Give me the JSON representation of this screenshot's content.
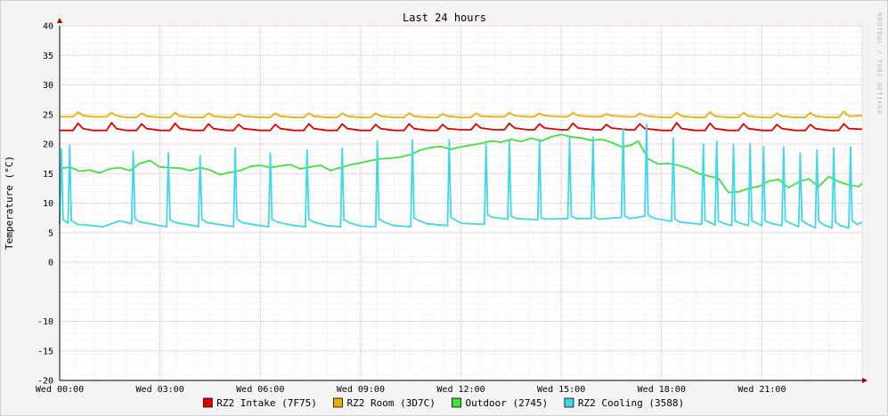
{
  "chart_data": {
    "type": "line",
    "title": "Last 24 hours",
    "ylabel": "Temperature (°C)",
    "watermark": "RRDTOOL / TOBI OETIKER",
    "ylim": [
      -20,
      40
    ],
    "y_ticks": [
      "40",
      "35",
      "30",
      "25",
      "20",
      "15",
      "10",
      "5",
      "0",
      "-10",
      "-15",
      "-20"
    ],
    "y_tick_values": [
      40,
      35,
      30,
      25,
      20,
      15,
      10,
      5,
      0,
      -10,
      -15,
      -20
    ],
    "xlim": [
      0,
      24
    ],
    "x_ticks": [
      "Wed 00:00",
      "Wed 03:00",
      "Wed 06:00",
      "Wed 09:00",
      "Wed 12:00",
      "Wed 15:00",
      "Wed 18:00",
      "Wed 21:00"
    ],
    "x_tick_values": [
      0,
      3,
      6,
      9,
      12,
      15,
      18,
      21
    ],
    "grid": true,
    "legend_position": "bottom",
    "series": [
      {
        "name": "RZ2 Intake (7F75)",
        "color": "#e00000",
        "x": [
          0,
          0.4,
          0.55,
          0.7,
          1,
          1.4,
          1.55,
          1.7,
          2,
          2.3,
          2.45,
          2.6,
          3,
          3.3,
          3.45,
          3.6,
          4,
          4.3,
          4.45,
          4.6,
          5,
          5.2,
          5.35,
          5.5,
          6,
          6.3,
          6.45,
          6.6,
          7,
          7.3,
          7.45,
          7.6,
          8,
          8.3,
          8.45,
          8.6,
          9,
          9.3,
          9.45,
          9.6,
          10,
          10.3,
          10.45,
          10.6,
          11,
          11.3,
          11.45,
          11.6,
          12,
          12.3,
          12.45,
          12.6,
          13,
          13.3,
          13.45,
          13.6,
          14,
          14.2,
          14.35,
          14.5,
          15,
          15.2,
          15.35,
          15.5,
          16,
          16.2,
          16.35,
          16.5,
          17,
          17.2,
          17.35,
          17.5,
          18,
          18.3,
          18.45,
          18.6,
          19,
          19.3,
          19.45,
          19.6,
          20,
          20.3,
          20.45,
          20.6,
          21,
          21.3,
          21.45,
          21.6,
          22,
          22.3,
          22.45,
          22.6,
          23,
          23.3,
          23.45,
          23.6,
          24
        ],
        "y": [
          22.3,
          22.3,
          23.5,
          22.6,
          22.3,
          22.3,
          23.6,
          22.6,
          22.3,
          22.3,
          23.4,
          22.6,
          22.3,
          22.3,
          23.5,
          22.6,
          22.3,
          22.3,
          23.4,
          22.6,
          22.3,
          22.3,
          23.3,
          22.6,
          22.3,
          22.3,
          23.3,
          22.6,
          22.3,
          22.3,
          23.4,
          22.6,
          22.3,
          22.3,
          23.4,
          22.6,
          22.3,
          22.3,
          23.3,
          22.6,
          22.3,
          22.3,
          23.4,
          22.6,
          22.3,
          22.3,
          23.3,
          22.6,
          22.4,
          22.4,
          23.4,
          22.7,
          22.4,
          22.4,
          23.5,
          22.7,
          22.4,
          22.4,
          23.4,
          22.7,
          22.4,
          22.4,
          23.5,
          22.7,
          22.4,
          22.4,
          23.3,
          22.7,
          22.4,
          22.4,
          23.4,
          22.6,
          22.3,
          22.3,
          23.6,
          22.6,
          22.3,
          22.3,
          23.5,
          22.6,
          22.3,
          22.3,
          23.4,
          22.6,
          22.3,
          22.3,
          23.3,
          22.6,
          22.3,
          22.3,
          23.3,
          22.6,
          22.3,
          22.3,
          23.4,
          22.6,
          22.5
        ]
      },
      {
        "name": "RZ2 Room (3D7C)",
        "color": "#e8b000",
        "x": [
          0,
          0.4,
          0.55,
          0.7,
          1,
          1.4,
          1.55,
          1.7,
          2,
          2.3,
          2.45,
          2.6,
          3,
          3.3,
          3.45,
          3.6,
          4,
          4.3,
          4.45,
          4.6,
          5,
          5.2,
          5.35,
          5.5,
          6,
          6.3,
          6.45,
          6.6,
          7,
          7.3,
          7.45,
          7.6,
          8,
          8.3,
          8.45,
          8.6,
          9,
          9.3,
          9.45,
          9.6,
          10,
          10.3,
          10.45,
          10.6,
          11,
          11.3,
          11.45,
          11.6,
          12,
          12.3,
          12.45,
          12.6,
          13,
          13.3,
          13.45,
          13.6,
          14,
          14.2,
          14.35,
          14.5,
          15,
          15.2,
          15.35,
          15.5,
          16,
          16.2,
          16.35,
          16.5,
          17,
          17.2,
          17.35,
          17.5,
          18,
          18.3,
          18.45,
          18.6,
          19,
          19.3,
          19.45,
          19.6,
          20,
          20.3,
          20.45,
          20.6,
          21,
          21.3,
          21.45,
          21.6,
          22,
          22.3,
          22.45,
          22.6,
          23,
          23.3,
          23.45,
          23.6,
          24
        ],
        "y": [
          24.6,
          24.6,
          25.4,
          24.8,
          24.6,
          24.6,
          25.3,
          24.8,
          24.5,
          24.5,
          25.2,
          24.7,
          24.5,
          24.5,
          25.3,
          24.7,
          24.5,
          24.5,
          25.2,
          24.7,
          24.5,
          24.5,
          25.1,
          24.7,
          24.5,
          24.5,
          25.2,
          24.7,
          24.5,
          24.5,
          25.2,
          24.7,
          24.5,
          24.5,
          25.2,
          24.7,
          24.5,
          24.5,
          25.2,
          24.7,
          24.5,
          24.5,
          25.2,
          24.7,
          24.5,
          24.5,
          25.1,
          24.7,
          24.5,
          24.5,
          25.2,
          24.7,
          24.6,
          24.6,
          25.3,
          24.8,
          24.6,
          24.6,
          25.2,
          24.8,
          24.6,
          24.6,
          25.3,
          24.8,
          24.6,
          24.6,
          25.1,
          24.8,
          24.6,
          24.6,
          25.2,
          24.8,
          24.5,
          24.5,
          25.3,
          24.7,
          24.5,
          24.5,
          25.4,
          24.7,
          24.5,
          24.5,
          25.3,
          24.7,
          24.5,
          24.5,
          25.2,
          24.7,
          24.5,
          24.5,
          25.3,
          24.7,
          24.5,
          24.5,
          25.5,
          24.7,
          24.8
        ]
      },
      {
        "name": "Outdoor (2745)",
        "color": "#40e040",
        "x": [
          0,
          0.3,
          0.6,
          0.9,
          1.2,
          1.5,
          1.8,
          2.1,
          2.4,
          2.7,
          3.0,
          3.3,
          3.6,
          3.9,
          4.2,
          4.5,
          4.8,
          5.1,
          5.4,
          5.7,
          6.0,
          6.3,
          6.6,
          6.9,
          7.2,
          7.5,
          7.8,
          8.1,
          8.4,
          8.7,
          9.0,
          9.3,
          9.6,
          9.9,
          10.2,
          10.5,
          10.8,
          11.1,
          11.4,
          11.7,
          12.0,
          12.3,
          12.6,
          12.9,
          13.2,
          13.5,
          13.8,
          14.1,
          14.4,
          14.7,
          15.0,
          15.3,
          15.6,
          15.9,
          16.2,
          16.5,
          16.8,
          17.1,
          17.3,
          17.6,
          17.9,
          18.2,
          18.5,
          18.8,
          19.1,
          19.4,
          19.7,
          20.0,
          20.3,
          20.6,
          20.9,
          21.2,
          21.5,
          21.8,
          22.1,
          22.4,
          22.7,
          23.0,
          23.3,
          23.6,
          23.9,
          24
        ],
        "y": [
          15.8,
          16.1,
          15.4,
          15.6,
          15.1,
          15.8,
          16.0,
          15.5,
          16.7,
          17.2,
          16.1,
          16.0,
          15.9,
          15.5,
          16.0,
          15.6,
          14.8,
          15.2,
          15.5,
          16.2,
          16.4,
          16.0,
          16.3,
          16.5,
          15.8,
          16.1,
          16.4,
          15.5,
          16.0,
          16.5,
          16.8,
          17.2,
          17.5,
          17.6,
          17.8,
          18.2,
          19.0,
          19.4,
          19.6,
          19.1,
          19.5,
          19.8,
          20.1,
          20.5,
          20.3,
          20.8,
          20.4,
          21.0,
          20.5,
          21.2,
          21.6,
          21.2,
          21.0,
          20.6,
          20.8,
          20.3,
          19.5,
          19.8,
          20.5,
          17.5,
          16.6,
          16.7,
          16.4,
          15.9,
          15.0,
          14.6,
          14.2,
          11.8,
          11.9,
          12.5,
          12.8,
          13.7,
          14.0,
          12.6,
          13.6,
          14.1,
          12.8,
          14.5,
          13.6,
          13.1,
          12.8,
          13.4
        ]
      },
      {
        "name": "RZ2 Cooling (3588)",
        "color": "#40d8e8",
        "x": [
          0,
          0.05,
          0.1,
          0.25,
          0.3,
          0.35,
          0.55,
          1.0,
          1.3,
          1.8,
          2.15,
          2.2,
          2.25,
          2.4,
          3.0,
          3.2,
          3.25,
          3.3,
          3.45,
          4.0,
          4.15,
          4.2,
          4.25,
          4.4,
          5.0,
          5.2,
          5.25,
          5.3,
          5.45,
          6.0,
          6.25,
          6.3,
          6.35,
          6.5,
          7.0,
          7.35,
          7.4,
          7.45,
          7.6,
          8.0,
          8.4,
          8.45,
          8.5,
          8.65,
          9.0,
          9.45,
          9.5,
          9.55,
          9.7,
          10.0,
          10.5,
          10.55,
          10.6,
          10.75,
          11.0,
          11.6,
          11.65,
          11.7,
          11.85,
          12.0,
          12.7,
          12.75,
          12.8,
          12.95,
          13.4,
          13.45,
          13.5,
          13.65,
          14.3,
          14.35,
          14.4,
          14.55,
          15.2,
          15.25,
          15.3,
          15.45,
          15.9,
          15.95,
          16.0,
          16.15,
          16.8,
          16.85,
          16.9,
          17.05,
          17.5,
          17.55,
          17.6,
          17.75,
          18.3,
          18.35,
          18.4,
          18.55,
          19.2,
          19.25,
          19.3,
          19.45,
          19.6,
          19.65,
          19.7,
          19.85,
          20.1,
          20.15,
          20.2,
          20.35,
          20.6,
          20.65,
          20.7,
          20.85,
          21.0,
          21.05,
          21.1,
          21.25,
          21.6,
          21.65,
          21.7,
          21.85,
          22.1,
          22.15,
          22.2,
          22.35,
          22.6,
          22.65,
          22.7,
          22.85,
          23.1,
          23.15,
          23.2,
          23.35,
          23.6,
          23.65,
          23.7,
          23.85,
          24
        ],
        "y": [
          6.4,
          19.2,
          7.2,
          6.6,
          19.8,
          7.0,
          6.4,
          6.2,
          6.0,
          7.0,
          6.5,
          18.8,
          7.4,
          6.8,
          6.2,
          6.0,
          18.5,
          7.2,
          6.7,
          6.2,
          6.0,
          18.0,
          7.3,
          6.7,
          6.2,
          6.0,
          19.3,
          7.3,
          6.7,
          6.2,
          6.0,
          18.5,
          7.3,
          6.8,
          6.2,
          6.0,
          19.0,
          7.3,
          6.8,
          6.2,
          6.0,
          19.3,
          7.2,
          6.7,
          6.1,
          6.0,
          20.5,
          7.3,
          6.8,
          6.2,
          6.0,
          20.7,
          7.5,
          7.0,
          6.5,
          6.2,
          20.7,
          7.6,
          7.1,
          6.6,
          6.4,
          20.0,
          8.0,
          7.6,
          7.3,
          20.5,
          7.8,
          7.4,
          7.2,
          20.8,
          7.5,
          7.3,
          7.4,
          21.0,
          7.8,
          7.4,
          7.4,
          21.2,
          7.6,
          7.3,
          7.6,
          22.5,
          7.8,
          7.4,
          7.8,
          23.3,
          8.0,
          7.5,
          6.9,
          21.0,
          7.3,
          6.8,
          6.4,
          20.0,
          7.1,
          6.7,
          6.3,
          20.5,
          7.0,
          6.6,
          6.2,
          20.0,
          7.0,
          6.6,
          6.2,
          20.0,
          7.0,
          6.6,
          6.2,
          19.5,
          7.0,
          6.6,
          6.2,
          19.5,
          7.0,
          6.6,
          6.0,
          18.5,
          7.0,
          6.5,
          5.8,
          19.0,
          7.0,
          6.3,
          5.8,
          19.3,
          6.8,
          6.2,
          5.8,
          19.5,
          7.0,
          6.4,
          6.8
        ]
      }
    ]
  }
}
